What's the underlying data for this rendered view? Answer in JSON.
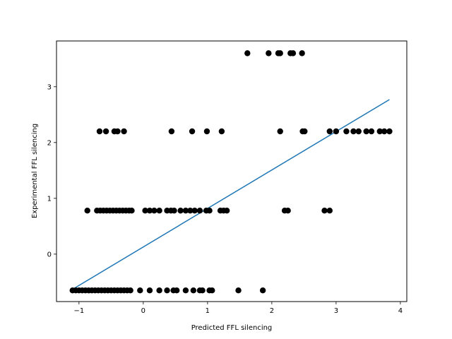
{
  "chart_data": {
    "type": "scatter",
    "title": "",
    "xlabel": "Predicted FFL silencing",
    "ylabel": "Experimental FFL silencing",
    "xlim": [
      -1.35,
      4.1
    ],
    "ylim": [
      -0.85,
      3.82
    ],
    "xticks": [
      -1,
      0,
      1,
      2,
      3,
      4
    ],
    "yticks": [
      0,
      1,
      2,
      3
    ],
    "grid": false,
    "marker_color": "#000000",
    "line_color": "#1f77b4",
    "points": [
      {
        "x": -1.1,
        "y": -0.65
      },
      {
        "x": -1.05,
        "y": -0.65
      },
      {
        "x": -1.0,
        "y": -0.65
      },
      {
        "x": -0.95,
        "y": -0.65
      },
      {
        "x": -0.9,
        "y": -0.65
      },
      {
        "x": -0.85,
        "y": -0.65
      },
      {
        "x": -0.8,
        "y": -0.65
      },
      {
        "x": -0.75,
        "y": -0.65
      },
      {
        "x": -0.7,
        "y": -0.65
      },
      {
        "x": -0.65,
        "y": -0.65
      },
      {
        "x": -0.6,
        "y": -0.65
      },
      {
        "x": -0.55,
        "y": -0.65
      },
      {
        "x": -0.5,
        "y": -0.65
      },
      {
        "x": -0.45,
        "y": -0.65
      },
      {
        "x": -0.4,
        "y": -0.65
      },
      {
        "x": -0.35,
        "y": -0.65
      },
      {
        "x": -0.3,
        "y": -0.65
      },
      {
        "x": -0.25,
        "y": -0.65
      },
      {
        "x": -0.2,
        "y": -0.65
      },
      {
        "x": -0.05,
        "y": -0.65
      },
      {
        "x": 0.1,
        "y": -0.65
      },
      {
        "x": 0.25,
        "y": -0.65
      },
      {
        "x": 0.37,
        "y": -0.65
      },
      {
        "x": 0.47,
        "y": -0.65
      },
      {
        "x": 0.52,
        "y": -0.65
      },
      {
        "x": 0.66,
        "y": -0.65
      },
      {
        "x": 0.78,
        "y": -0.65
      },
      {
        "x": 0.88,
        "y": -0.65
      },
      {
        "x": 0.92,
        "y": -0.65
      },
      {
        "x": 1.03,
        "y": -0.65
      },
      {
        "x": 1.07,
        "y": -0.65
      },
      {
        "x": 1.48,
        "y": -0.65
      },
      {
        "x": 1.86,
        "y": -0.65
      },
      {
        "x": -0.87,
        "y": 0.78
      },
      {
        "x": -0.72,
        "y": 0.78
      },
      {
        "x": -0.67,
        "y": 0.78
      },
      {
        "x": -0.62,
        "y": 0.78
      },
      {
        "x": -0.57,
        "y": 0.78
      },
      {
        "x": -0.52,
        "y": 0.78
      },
      {
        "x": -0.47,
        "y": 0.78
      },
      {
        "x": -0.42,
        "y": 0.78
      },
      {
        "x": -0.37,
        "y": 0.78
      },
      {
        "x": -0.32,
        "y": 0.78
      },
      {
        "x": -0.27,
        "y": 0.78
      },
      {
        "x": -0.22,
        "y": 0.78
      },
      {
        "x": -0.18,
        "y": 0.78
      },
      {
        "x": 0.03,
        "y": 0.78
      },
      {
        "x": 0.1,
        "y": 0.78
      },
      {
        "x": 0.17,
        "y": 0.78
      },
      {
        "x": 0.25,
        "y": 0.78
      },
      {
        "x": 0.37,
        "y": 0.78
      },
      {
        "x": 0.43,
        "y": 0.78
      },
      {
        "x": 0.48,
        "y": 0.78
      },
      {
        "x": 0.58,
        "y": 0.78
      },
      {
        "x": 0.66,
        "y": 0.78
      },
      {
        "x": 0.73,
        "y": 0.78
      },
      {
        "x": 0.8,
        "y": 0.78
      },
      {
        "x": 0.88,
        "y": 0.78
      },
      {
        "x": 0.98,
        "y": 0.78
      },
      {
        "x": 1.03,
        "y": 0.78
      },
      {
        "x": 1.2,
        "y": 0.78
      },
      {
        "x": 1.25,
        "y": 0.78
      },
      {
        "x": 1.3,
        "y": 0.78
      },
      {
        "x": 2.2,
        "y": 0.78
      },
      {
        "x": 2.25,
        "y": 0.78
      },
      {
        "x": 2.82,
        "y": 0.78
      },
      {
        "x": 2.9,
        "y": 0.78
      },
      {
        "x": -0.68,
        "y": 2.2
      },
      {
        "x": -0.58,
        "y": 2.2
      },
      {
        "x": -0.45,
        "y": 2.2
      },
      {
        "x": -0.4,
        "y": 2.2
      },
      {
        "x": -0.3,
        "y": 2.2
      },
      {
        "x": 0.44,
        "y": 2.2
      },
      {
        "x": 0.76,
        "y": 2.2
      },
      {
        "x": 0.99,
        "y": 2.2
      },
      {
        "x": 1.22,
        "y": 2.2
      },
      {
        "x": 2.13,
        "y": 2.2
      },
      {
        "x": 2.48,
        "y": 2.2
      },
      {
        "x": 2.51,
        "y": 2.2
      },
      {
        "x": 2.9,
        "y": 2.2
      },
      {
        "x": 3.0,
        "y": 2.2
      },
      {
        "x": 3.16,
        "y": 2.2
      },
      {
        "x": 3.27,
        "y": 2.2
      },
      {
        "x": 3.35,
        "y": 2.2
      },
      {
        "x": 3.47,
        "y": 2.2
      },
      {
        "x": 3.55,
        "y": 2.2
      },
      {
        "x": 3.68,
        "y": 2.2
      },
      {
        "x": 3.75,
        "y": 2.2
      },
      {
        "x": 3.83,
        "y": 2.2
      },
      {
        "x": 1.62,
        "y": 3.6
      },
      {
        "x": 1.95,
        "y": 3.6
      },
      {
        "x": 2.1,
        "y": 3.6
      },
      {
        "x": 2.13,
        "y": 3.6
      },
      {
        "x": 2.29,
        "y": 3.6
      },
      {
        "x": 2.33,
        "y": 3.6
      },
      {
        "x": 2.47,
        "y": 3.6
      }
    ],
    "fit_line": {
      "x": [
        -1.1,
        3.83
      ],
      "y": [
        -0.63,
        2.77
      ]
    }
  }
}
